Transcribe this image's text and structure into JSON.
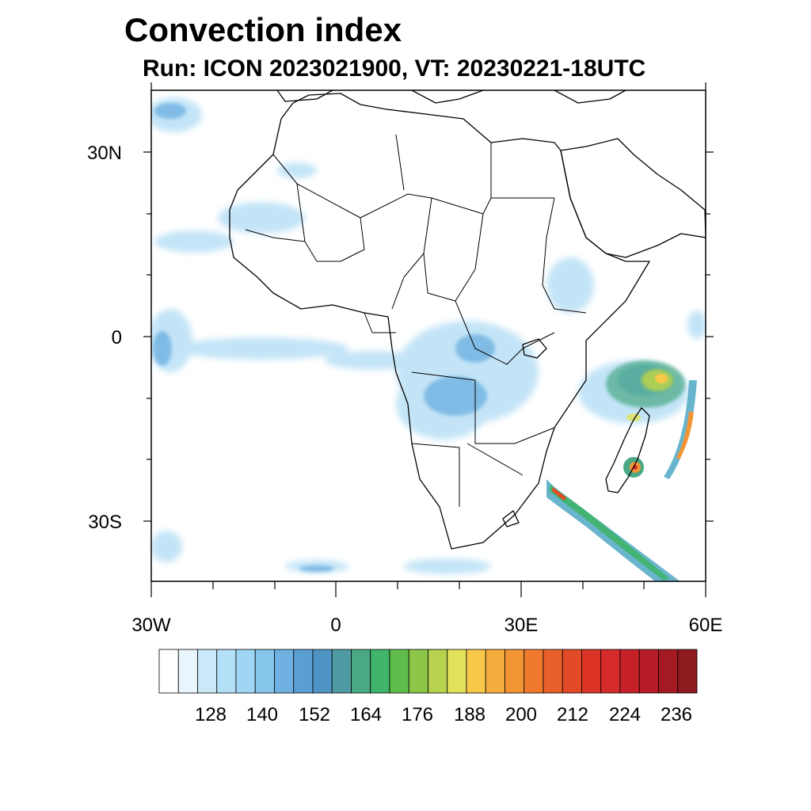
{
  "title": "Convection index",
  "subtitle": "Run: ICON 2023021900,  VT: 20230221-18UTC",
  "map": {
    "projection": "cylindrical",
    "lon_range": [
      -30,
      60
    ],
    "lat_range": [
      -40,
      40
    ],
    "y_ticks": [
      {
        "lat": 30,
        "label": "30N"
      },
      {
        "lat": 0,
        "label": "0"
      },
      {
        "lat": -30,
        "label": "30S"
      }
    ],
    "x_ticks": [
      {
        "lon": -30,
        "label": "30W"
      },
      {
        "lon": 0,
        "label": "0"
      },
      {
        "lon": 30,
        "label": "30E"
      },
      {
        "lon": 60,
        "label": "60E"
      }
    ]
  },
  "colorbar": {
    "labels": [
      "128",
      "140",
      "152",
      "164",
      "176",
      "188",
      "200",
      "212",
      "224",
      "236"
    ],
    "colors": [
      "#ffffff",
      "#e8f5fc",
      "#cbe8f8",
      "#b3e0f7",
      "#9fd6f4",
      "#86c5ec",
      "#6fb2e2",
      "#5a9fd4",
      "#4e94c4",
      "#4f9ba4",
      "#4aa884",
      "#3fb46a",
      "#5fbd4c",
      "#8cc648",
      "#b6d24e",
      "#e4e15a",
      "#f7c84a",
      "#f6ad3e",
      "#f39435",
      "#ef7a2e",
      "#e9612a",
      "#e34a28",
      "#dc3527",
      "#d42a2a",
      "#c62128",
      "#b51c26",
      "#a31a23",
      "#8e1b20"
    ]
  }
}
